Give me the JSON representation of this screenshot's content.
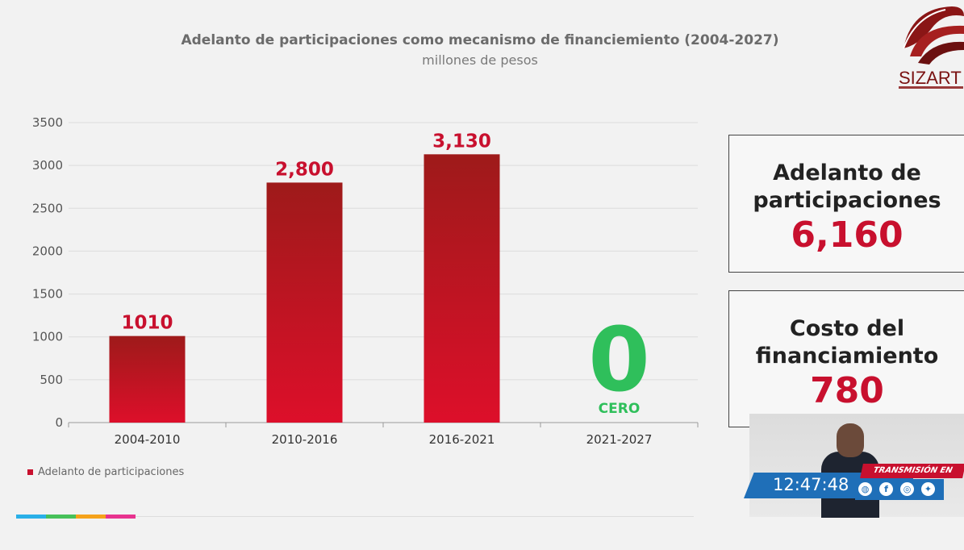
{
  "chart_data": {
    "type": "bar",
    "title": "Adelanto de participaciones como mecanismo de financiemiento (2004-2027)",
    "subtitle": "millones de pesos",
    "categories": [
      "2004-2010",
      "2010-2016",
      "2016-2021",
      "2021-2027"
    ],
    "series": [
      {
        "name": "Adelanto de participaciones",
        "values": [
          1010,
          2800,
          3130,
          0
        ]
      }
    ],
    "data_labels": [
      "1010",
      "2,800",
      "3,130",
      "0"
    ],
    "zero_note": "CERO",
    "ylim": [
      0,
      3500
    ],
    "yticks": [
      0,
      500,
      1000,
      1500,
      2000,
      2500,
      3000,
      3500
    ],
    "grid": true,
    "legend": "bottom-left",
    "bar_color": "#c8102e",
    "zero_color": "#2fbf5b"
  },
  "summary_boxes": [
    {
      "label": "Adelanto de participaciones",
      "value": "6,160"
    },
    {
      "label": "Costo del financiamiento",
      "value": "780"
    }
  ],
  "logo": {
    "text": "SIZART"
  },
  "broadcast": {
    "live_label": "TRANSMISIÓN EN VIVO",
    "time": "12:47:48",
    "icons": [
      "globe-icon",
      "facebook-icon",
      "instagram-icon",
      "twitter-icon"
    ]
  },
  "strip_colors": [
    "#2ab0e8",
    "#47c15a",
    "#f5a21b",
    "#e8338f"
  ]
}
